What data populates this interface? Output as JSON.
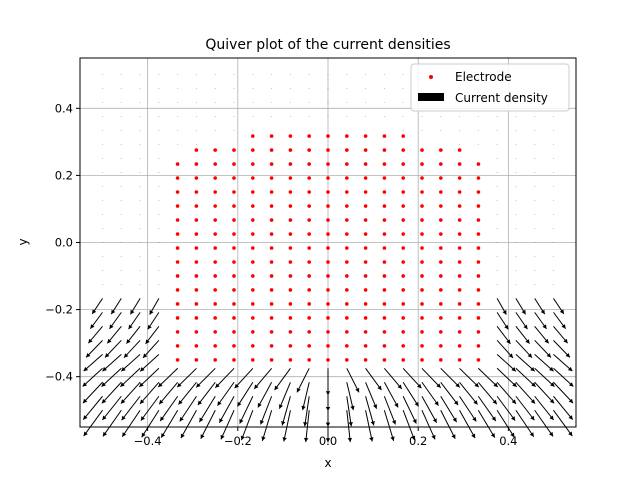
{
  "chart_data": {
    "type": "quiver",
    "title": "Quiver plot of the current densities",
    "xlabel": "x",
    "ylabel": "y",
    "xlim": [
      -0.55,
      0.55
    ],
    "ylim": [
      -0.55,
      0.55
    ],
    "xticks": [
      -0.4,
      -0.2,
      0.0,
      0.2,
      0.4
    ],
    "xtick_labels": [
      "−0.4",
      "−0.2",
      "0.0",
      "0.2",
      "0.4"
    ],
    "yticks": [
      -0.4,
      -0.2,
      0.0,
      0.2,
      0.4
    ],
    "ytick_labels": [
      "−0.4",
      "−0.2",
      "0.0",
      "0.2",
      "0.4"
    ],
    "grid": true,
    "legend_position": "upper-right",
    "legend": [
      {
        "label": "Electrode",
        "marker": "dot",
        "color": "#ff0000"
      },
      {
        "label": "Current density",
        "marker": "rect",
        "color": "#000000"
      }
    ],
    "electrode": {
      "name": "Electrode",
      "color": "#ff0000",
      "shape": "semicircle",
      "center": [
        0.0,
        -0.35
      ],
      "radius": 0.7,
      "grid_spacing": [
        0.0417,
        0.0417
      ],
      "y_min": -0.35
    },
    "current_density": {
      "name": "Current density",
      "color": "#000000",
      "grid_x_range": [
        -0.5,
        0.5
      ],
      "grid_y_range": [
        -0.5,
        0.5
      ],
      "grid_n": 25,
      "field": "outward from electrode boundary, strongest below the electrode"
    }
  }
}
